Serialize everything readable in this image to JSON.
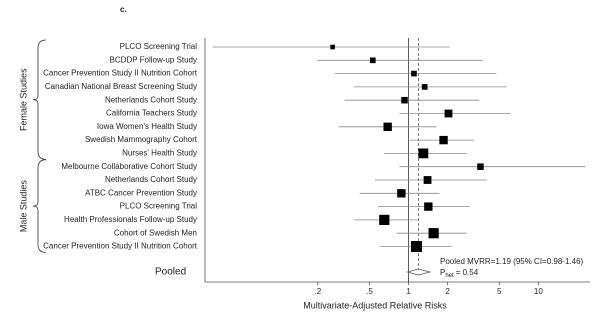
{
  "chart_data": {
    "type": "forest",
    "panel_label": "c.",
    "x_label": "Multivariate-Adjusted Relative Risks",
    "xscale": "log",
    "xlim": [
      0.027,
      25
    ],
    "xticks": [
      {
        "value": 0.2,
        "label": ".2"
      },
      {
        "value": 0.5,
        "label": ".5"
      },
      1,
      2,
      5,
      10
    ],
    "reference_line": 1,
    "groups": [
      {
        "name": "Female Studies",
        "studies": [
          {
            "name": "PLCO Screening Trial",
            "rr": 0.26,
            "lo": 0.031,
            "hi": 2.07,
            "weight": 1
          },
          {
            "name": "BCDDP Follow-up Study",
            "rr": 0.53,
            "lo": 0.2,
            "hi": 3.7,
            "weight": 2
          },
          {
            "name": "Cancer Prevention Study II Nutrition Cohort",
            "rr": 1.1,
            "lo": 0.27,
            "hi": 4.75,
            "weight": 2
          },
          {
            "name": "Canadian National Breast Screening Study",
            "rr": 1.33,
            "lo": 0.38,
            "hi": 5.7,
            "weight": 2
          },
          {
            "name": "Netherlands Cohort Study",
            "rr": 0.93,
            "lo": 0.32,
            "hi": 3.5,
            "weight": 3
          },
          {
            "name": "California Teachers Study",
            "rr": 2.03,
            "lo": 0.85,
            "hi": 6.1,
            "weight": 5
          },
          {
            "name": "Iowa Women's Health Study",
            "rr": 0.69,
            "lo": 0.29,
            "hi": 1.64,
            "weight": 6
          },
          {
            "name": "Swedish Mammography Cohort",
            "rr": 1.86,
            "lo": 1.02,
            "hi": 3.2,
            "weight": 6
          },
          {
            "name": "Nurses' Health Study",
            "rr": 1.3,
            "lo": 0.65,
            "hi": 2.8,
            "weight": 9
          }
        ]
      },
      {
        "name": "Male Studies",
        "studies": [
          {
            "name": "Melbourne Collaborative Cohort Study",
            "rr": 3.58,
            "lo": 0.85,
            "hi": 23,
            "weight": 3
          },
          {
            "name": "Netherlands Cohort Study",
            "rr": 1.4,
            "lo": 0.55,
            "hi": 4.0,
            "weight": 5
          },
          {
            "name": "ATBC Cancer Prevention Study",
            "rr": 0.88,
            "lo": 0.42,
            "hi": 1.73,
            "weight": 6
          },
          {
            "name": "PLCO Screening Trial",
            "rr": 1.42,
            "lo": 0.58,
            "hi": 2.95,
            "weight": 6
          },
          {
            "name": "Health Professionals Follow-up Study",
            "rr": 0.65,
            "lo": 0.38,
            "hi": 1.17,
            "weight": 10
          },
          {
            "name": "Cohort of Swedish Men",
            "rr": 1.56,
            "lo": 0.81,
            "hi": 2.8,
            "weight": 10
          },
          {
            "name": "Cancer Prevention Study II Nutrition Cohort",
            "rr": 1.15,
            "lo": 0.6,
            "hi": 2.14,
            "weight": 12
          }
        ]
      }
    ],
    "pooled": {
      "name": "Pooled",
      "rr": 1.19,
      "lo": 0.98,
      "hi": 1.46,
      "summary": "Pooled MVRR=1.19 (95% CI=0.98-1.46)",
      "het_symbol": "P",
      "het_subscript": "het",
      "het_value": "= 0.54"
    }
  }
}
